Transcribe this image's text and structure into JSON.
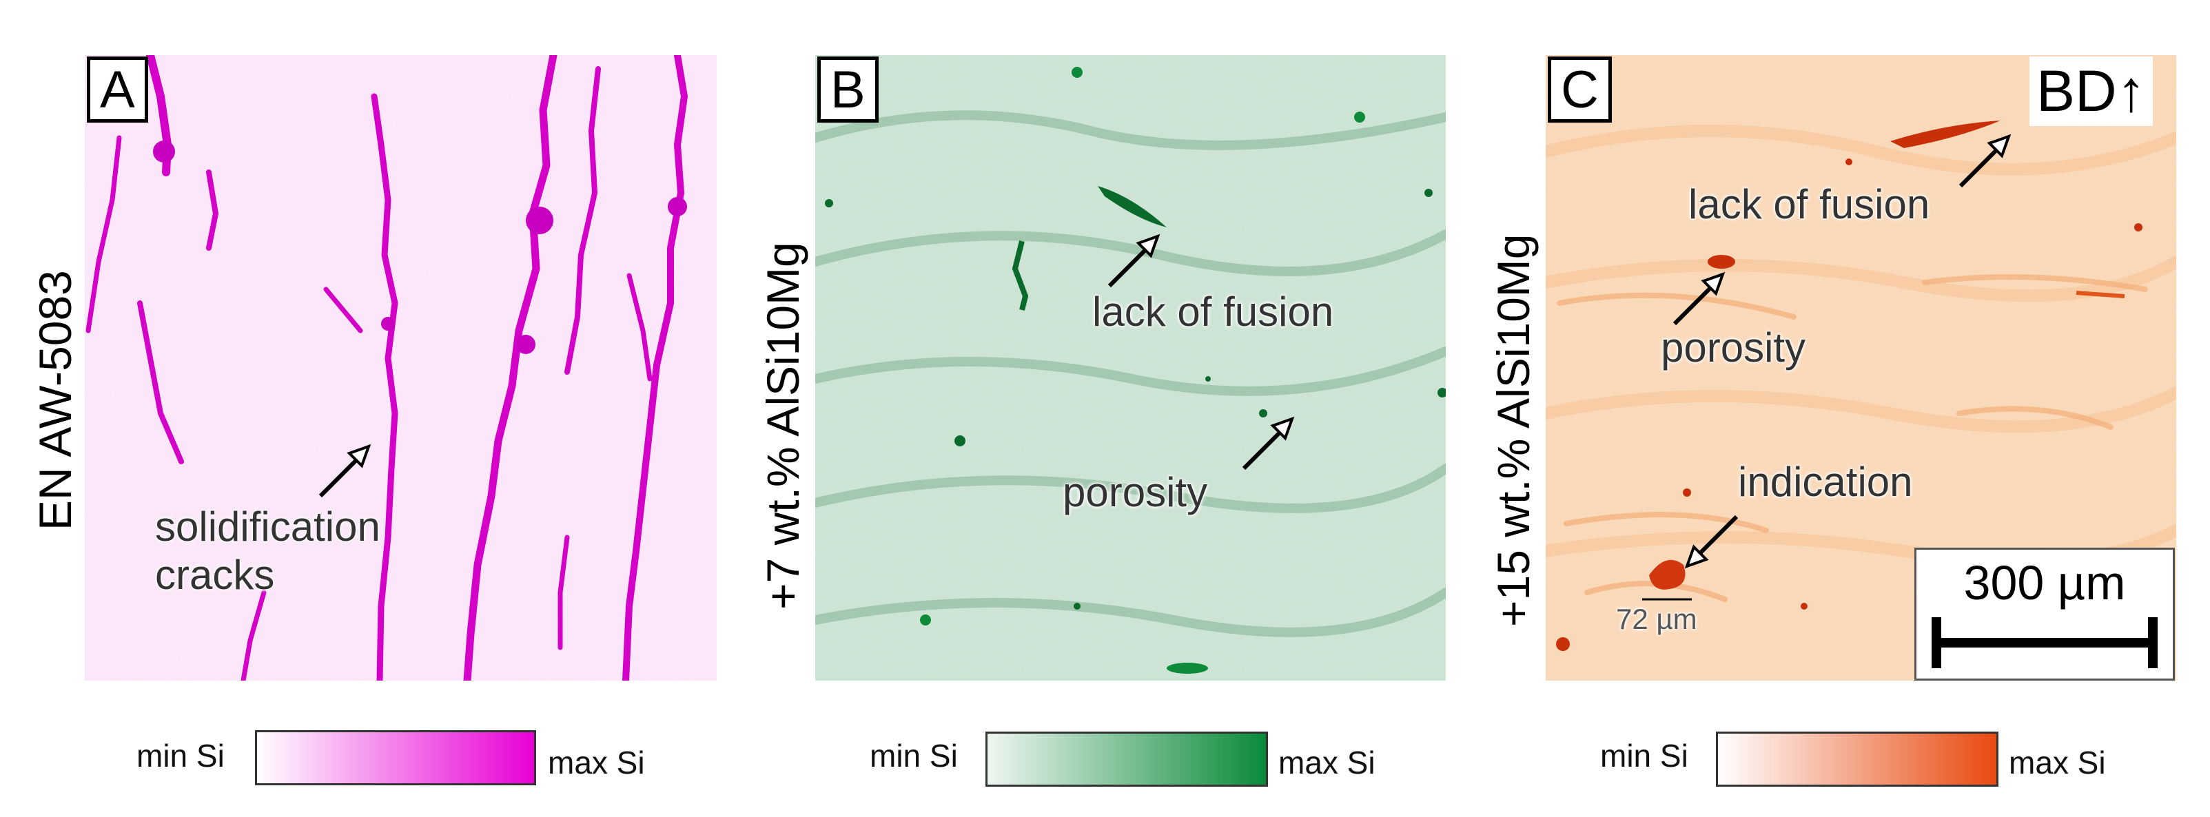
{
  "panels": [
    {
      "id": "A",
      "badge": "A",
      "side_label": "EN AW-5083",
      "annotations": [
        "solidification",
        "cracks"
      ],
      "tint": "#e800d6",
      "bg": "#f8e6f6"
    },
    {
      "id": "B",
      "badge": "B",
      "side_label": "+7 wt.% AlSi10Mg",
      "annotations": [
        "lack of fusion",
        "porosity"
      ],
      "tint": "#0a8a3a",
      "bg": "#dcebe0"
    },
    {
      "id": "C",
      "badge": "C",
      "side_label": "+15 wt.% AlSi10Mg",
      "annotations": [
        "lack of fusion",
        "porosity",
        "indication",
        "72 µm"
      ],
      "tint": "#e84a10",
      "bg": "#fbdcbf",
      "build_direction": "BD",
      "scale_bar": "300 µm"
    }
  ],
  "colorbars": [
    {
      "min_label": "min Si",
      "max_label": "max Si",
      "color": "#e800d6"
    },
    {
      "min_label": "min Si",
      "max_label": "max Si",
      "color": "#0a8a3a"
    },
    {
      "min_label": "min Si",
      "max_label": "max Si",
      "color": "#e84a10"
    }
  ]
}
